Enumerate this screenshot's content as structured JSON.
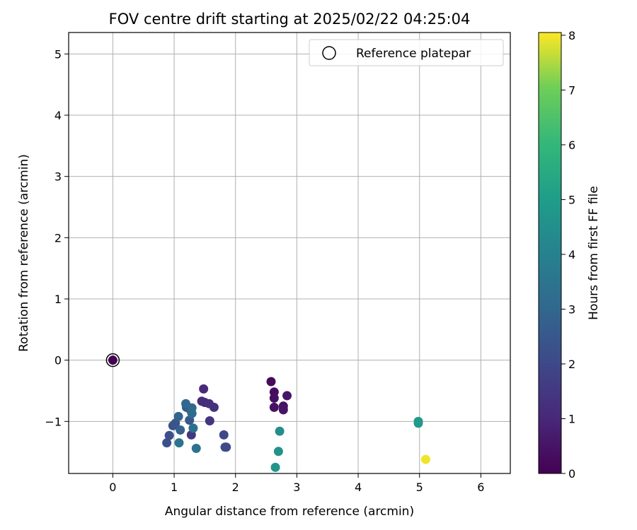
{
  "chart_data": {
    "type": "scatter",
    "title": "FOV centre drift starting at 2025/02/22 04:25:04",
    "xlabel": "Angular distance from reference (arcmin)",
    "ylabel": "Rotation from reference (arcmin)",
    "xlim": [
      -0.72,
      6.48
    ],
    "ylim": [
      -1.85,
      5.35
    ],
    "xticks": [
      "0",
      "1",
      "2",
      "3",
      "4",
      "5",
      "6"
    ],
    "yticks": [
      "−1",
      "0",
      "1",
      "2",
      "3",
      "4",
      "5"
    ],
    "grid": true,
    "legend": {
      "position": "top-right",
      "label": "Reference platepar"
    },
    "reference_point": {
      "x": 0,
      "y": 0
    },
    "colorbar": {
      "label": "Hours from first FF file",
      "range": [
        0,
        8.05
      ],
      "ticks": [
        "0",
        "1",
        "2",
        "3",
        "4",
        "5",
        "6",
        "7",
        "8"
      ],
      "colormap": "viridis"
    },
    "points": [
      {
        "x": 0.0,
        "y": 0.0,
        "c": 0.0
      },
      {
        "x": 2.58,
        "y": -0.35,
        "c": 0.25
      },
      {
        "x": 2.63,
        "y": -0.52,
        "c": 0.3
      },
      {
        "x": 2.63,
        "y": -0.62,
        "c": 0.35
      },
      {
        "x": 2.63,
        "y": -0.77,
        "c": 0.4
      },
      {
        "x": 2.78,
        "y": -0.75,
        "c": 0.45
      },
      {
        "x": 2.78,
        "y": -0.81,
        "c": 0.5
      },
      {
        "x": 2.84,
        "y": -0.58,
        "c": 0.55
      },
      {
        "x": 1.48,
        "y": -0.47,
        "c": 1.1
      },
      {
        "x": 1.45,
        "y": -0.67,
        "c": 1.15
      },
      {
        "x": 1.5,
        "y": -0.69,
        "c": 1.2
      },
      {
        "x": 1.57,
        "y": -0.71,
        "c": 1.25
      },
      {
        "x": 1.65,
        "y": -0.77,
        "c": 1.3
      },
      {
        "x": 1.58,
        "y": -0.99,
        "c": 1.4
      },
      {
        "x": 1.28,
        "y": -1.22,
        "c": 1.5
      },
      {
        "x": 1.81,
        "y": -1.22,
        "c": 2.0
      },
      {
        "x": 1.83,
        "y": -1.42,
        "c": 2.1
      },
      {
        "x": 1.85,
        "y": -1.42,
        "c": 2.1
      },
      {
        "x": 0.88,
        "y": -1.35,
        "c": 2.2
      },
      {
        "x": 0.92,
        "y": -1.23,
        "c": 2.25
      },
      {
        "x": 0.98,
        "y": -1.07,
        "c": 2.35
      },
      {
        "x": 1.02,
        "y": -1.03,
        "c": 2.4
      },
      {
        "x": 1.25,
        "y": -0.98,
        "c": 2.5
      },
      {
        "x": 1.2,
        "y": -0.77,
        "c": 2.6
      },
      {
        "x": 1.27,
        "y": -0.82,
        "c": 2.7
      },
      {
        "x": 1.1,
        "y": -1.14,
        "c": 2.8
      },
      {
        "x": 1.07,
        "y": -0.92,
        "c": 2.9
      },
      {
        "x": 1.19,
        "y": -0.71,
        "c": 3.05
      },
      {
        "x": 1.29,
        "y": -0.78,
        "c": 3.1
      },
      {
        "x": 1.29,
        "y": -0.87,
        "c": 3.2
      },
      {
        "x": 1.31,
        "y": -1.11,
        "c": 3.3
      },
      {
        "x": 1.36,
        "y": -1.44,
        "c": 3.4
      },
      {
        "x": 1.08,
        "y": -1.35,
        "c": 3.5
      },
      {
        "x": 2.72,
        "y": -1.16,
        "c": 4.5
      },
      {
        "x": 2.7,
        "y": -1.49,
        "c": 4.6
      },
      {
        "x": 2.65,
        "y": -1.75,
        "c": 4.7
      },
      {
        "x": 4.98,
        "y": -1.0,
        "c": 4.85
      },
      {
        "x": 4.98,
        "y": -1.03,
        "c": 4.9
      },
      {
        "x": 5.1,
        "y": -1.62,
        "c": 7.95
      }
    ]
  }
}
